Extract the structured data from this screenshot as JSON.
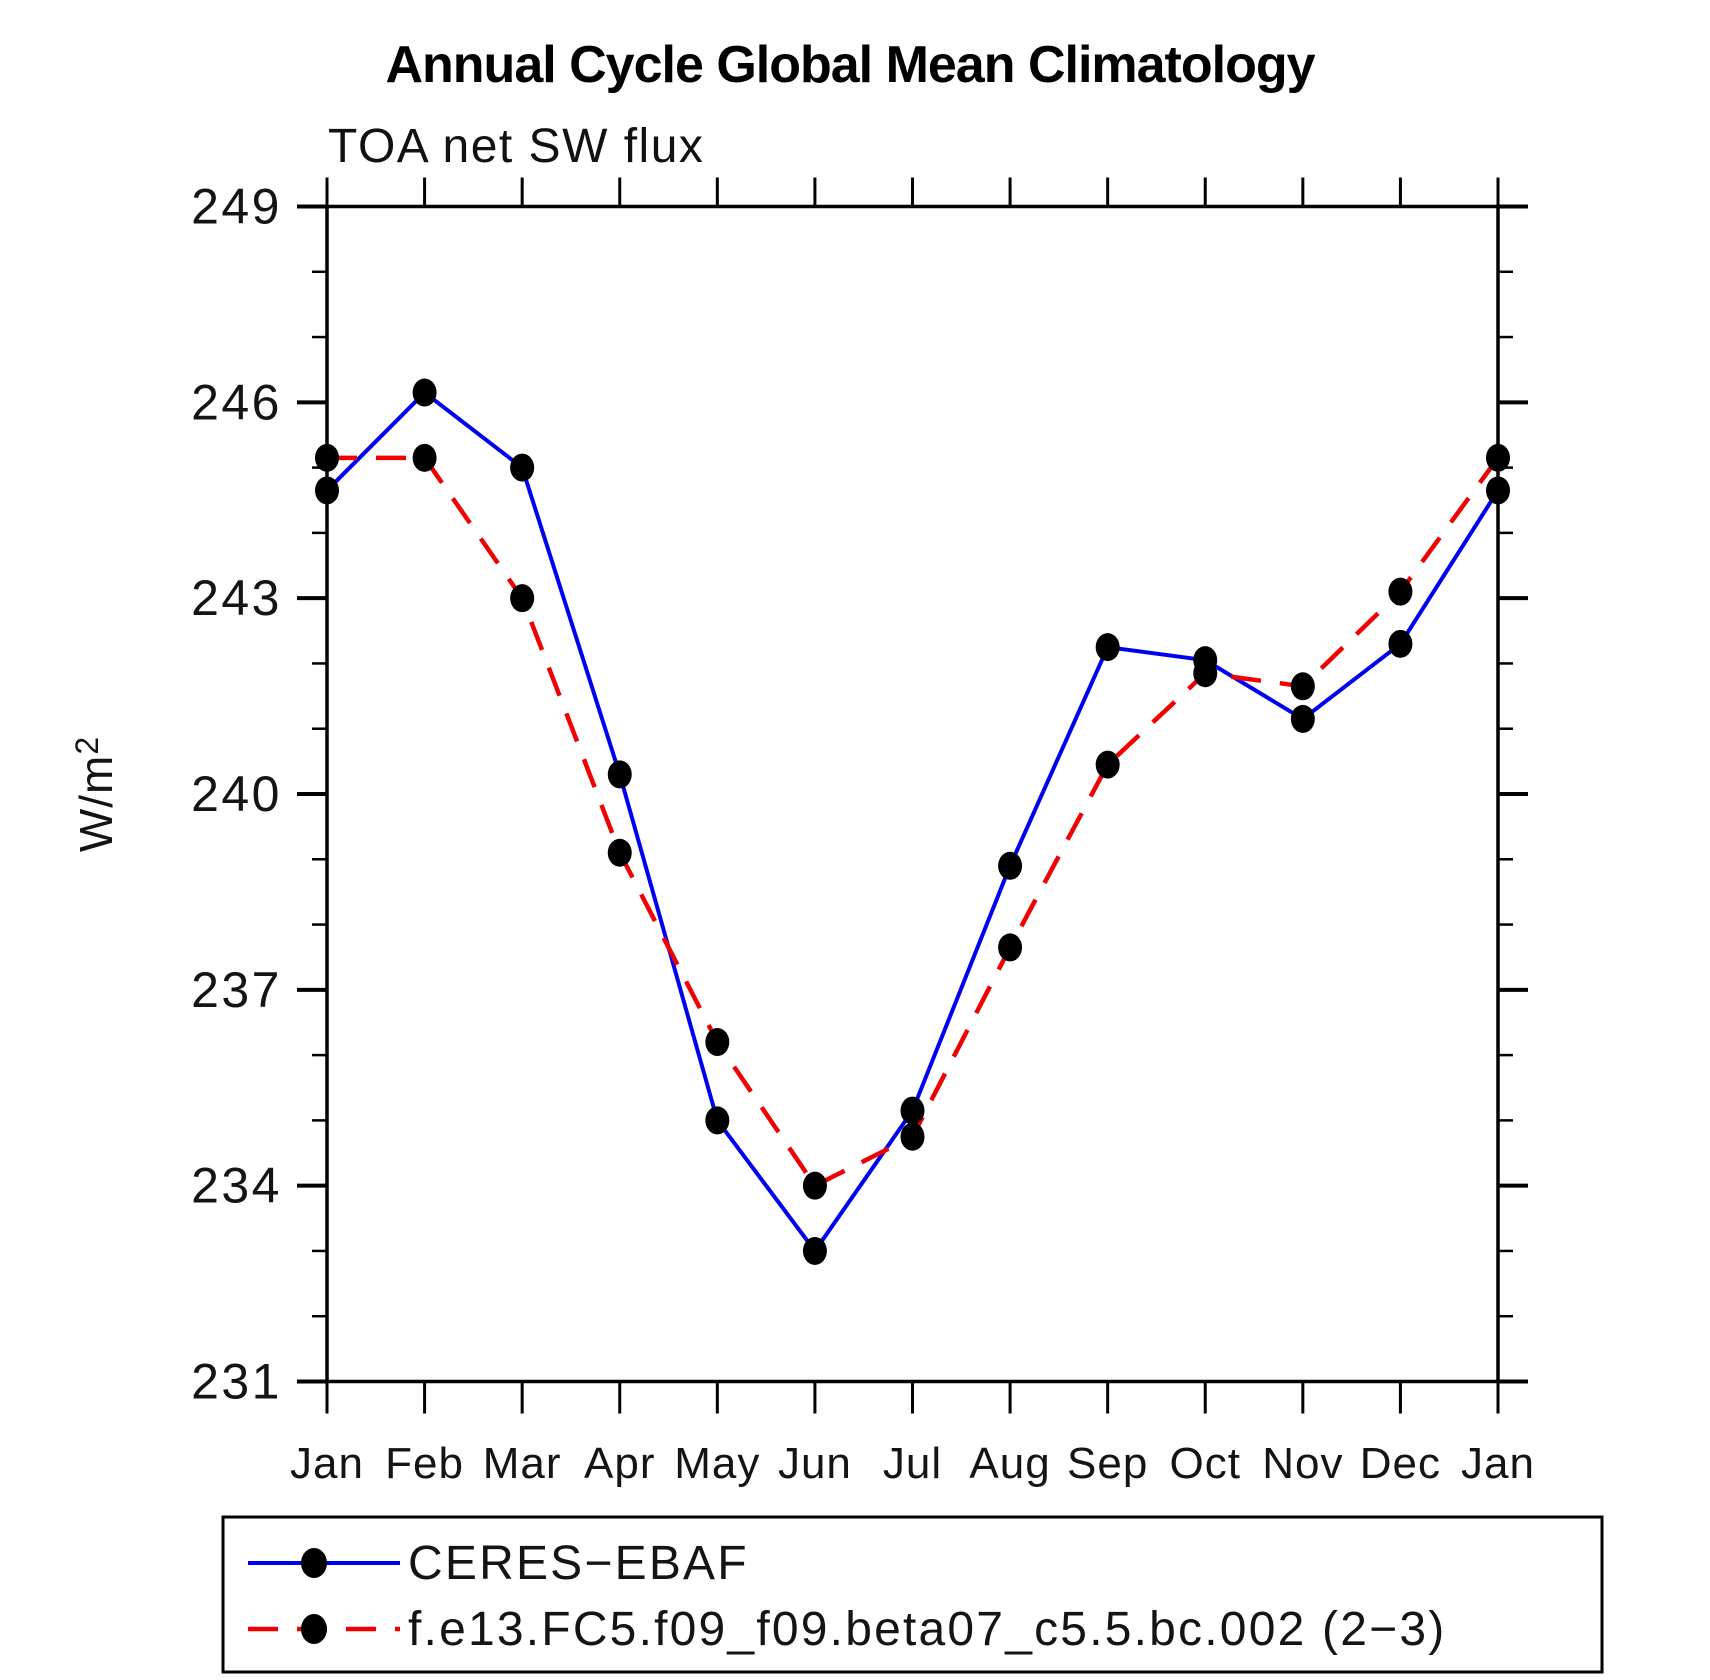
{
  "title": "Annual Cycle Global Mean Climatology",
  "subtitle": "TOA net SW flux",
  "ylabel_base": "W/m",
  "ylabel_exp": "2",
  "axis_color": "#000000",
  "marker_color": "#000000",
  "chart_data": {
    "type": "line",
    "title": "Annual Cycle Global Mean Climatology",
    "subtitle": "TOA net SW flux",
    "xlabel": "",
    "ylabel": "W/m^2",
    "ylim": [
      231,
      249
    ],
    "ytick_major": [
      231,
      234,
      237,
      240,
      243,
      246,
      249
    ],
    "ytick_minor_step": 1,
    "grid": false,
    "legend_position": "bottom",
    "categories": [
      "Jan",
      "Feb",
      "Mar",
      "Apr",
      "May",
      "Jun",
      "Jul",
      "Aug",
      "Sep",
      "Oct",
      "Nov",
      "Dec",
      "Jan"
    ],
    "series": [
      {
        "name": "CERES−EBAF",
        "color": "#0000f0",
        "style": "solid",
        "marker": "circle",
        "marker_color": "#000000",
        "values": [
          244.65,
          246.15,
          245.0,
          240.3,
          235.0,
          233.0,
          235.15,
          238.9,
          242.25,
          242.05,
          241.15,
          242.3,
          244.65
        ]
      },
      {
        "name": "f.e13.FC5.f09_f09.beta07_c5.5.bc.002 (2−3)",
        "color": "#f00000",
        "style": "dashed",
        "marker": "circle",
        "marker_color": "#000000",
        "values": [
          245.15,
          245.15,
          243.0,
          239.1,
          236.2,
          234.0,
          234.75,
          237.65,
          240.45,
          241.85,
          241.65,
          243.1,
          245.15
        ]
      }
    ]
  }
}
